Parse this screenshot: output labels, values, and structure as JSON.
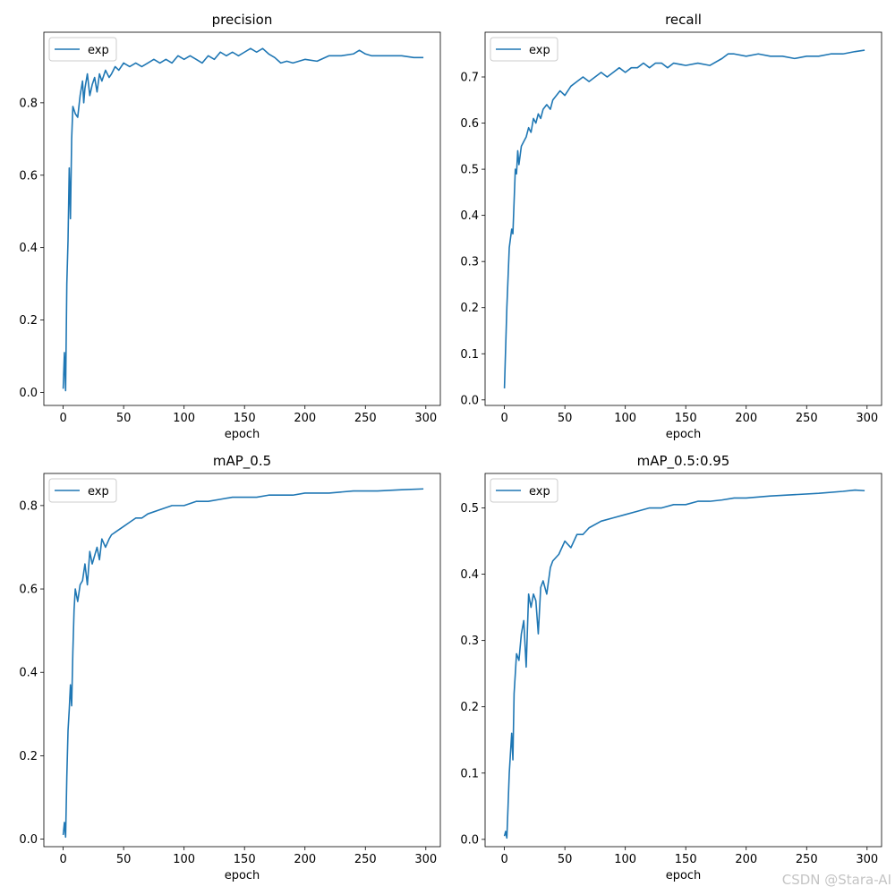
{
  "watermark": "CSDN @Stara-AI",
  "chart_data": [
    {
      "type": "line",
      "title": "precision",
      "xlabel": "epoch",
      "ylabel": "",
      "xlim": [
        -16,
        312
      ],
      "ylim": [
        -0.036,
        0.995
      ],
      "xticks": [
        0,
        50,
        100,
        150,
        200,
        250,
        300
      ],
      "yticks": [
        0.0,
        0.2,
        0.4,
        0.6,
        0.8
      ],
      "ytick_labels": [
        "0.0",
        "0.2",
        "0.4",
        "0.6",
        "0.8"
      ],
      "legend": "top-left",
      "series": [
        {
          "name": "exp",
          "color": "#1f77b4",
          "x": [
            0,
            1,
            2,
            3,
            4,
            5,
            6,
            7,
            8,
            9,
            10,
            12,
            14,
            16,
            17,
            18,
            20,
            22,
            24,
            26,
            28,
            30,
            32,
            35,
            38,
            40,
            43,
            46,
            50,
            55,
            60,
            65,
            70,
            75,
            80,
            85,
            90,
            95,
            100,
            105,
            110,
            115,
            120,
            125,
            130,
            135,
            140,
            145,
            150,
            155,
            160,
            165,
            170,
            175,
            180,
            185,
            190,
            195,
            200,
            210,
            220,
            230,
            240,
            245,
            250,
            255,
            260,
            270,
            280,
            290,
            298
          ],
          "y": [
            0.01,
            0.11,
            0.005,
            0.3,
            0.42,
            0.62,
            0.48,
            0.7,
            0.79,
            0.78,
            0.77,
            0.76,
            0.82,
            0.86,
            0.8,
            0.84,
            0.88,
            0.82,
            0.85,
            0.87,
            0.83,
            0.88,
            0.86,
            0.89,
            0.87,
            0.88,
            0.9,
            0.89,
            0.91,
            0.9,
            0.91,
            0.9,
            0.91,
            0.92,
            0.91,
            0.92,
            0.91,
            0.93,
            0.92,
            0.93,
            0.92,
            0.91,
            0.93,
            0.92,
            0.94,
            0.93,
            0.94,
            0.93,
            0.94,
            0.95,
            0.94,
            0.95,
            0.935,
            0.925,
            0.91,
            0.915,
            0.91,
            0.915,
            0.92,
            0.915,
            0.93,
            0.93,
            0.935,
            0.945,
            0.935,
            0.93,
            0.93,
            0.93,
            0.93,
            0.925,
            0.925
          ]
        }
      ]
    },
    {
      "type": "line",
      "title": "recall",
      "xlabel": "epoch",
      "ylabel": "",
      "xlim": [
        -16,
        312
      ],
      "ylim": [
        -0.012,
        0.797
      ],
      "xticks": [
        0,
        50,
        100,
        150,
        200,
        250,
        300
      ],
      "yticks": [
        0.0,
        0.1,
        0.2,
        0.3,
        0.4,
        0.5,
        0.6,
        0.7
      ],
      "ytick_labels": [
        "0.0",
        "0.1",
        "0.2",
        "0.3",
        "0.4",
        "0.5",
        "0.6",
        "0.7"
      ],
      "legend": "top-left",
      "series": [
        {
          "name": "exp",
          "color": "#1f77b4",
          "x": [
            0,
            2,
            4,
            6,
            7,
            8,
            9,
            10,
            11,
            12,
            14,
            16,
            18,
            20,
            22,
            24,
            26,
            28,
            30,
            32,
            35,
            38,
            40,
            43,
            46,
            50,
            55,
            60,
            65,
            70,
            75,
            80,
            85,
            90,
            95,
            100,
            105,
            110,
            115,
            120,
            125,
            130,
            135,
            140,
            150,
            160,
            170,
            180,
            185,
            190,
            200,
            210,
            220,
            230,
            240,
            250,
            260,
            270,
            280,
            290,
            298
          ],
          "y": [
            0.025,
            0.2,
            0.33,
            0.37,
            0.36,
            0.43,
            0.5,
            0.49,
            0.54,
            0.51,
            0.55,
            0.56,
            0.57,
            0.59,
            0.58,
            0.61,
            0.6,
            0.62,
            0.61,
            0.63,
            0.64,
            0.63,
            0.65,
            0.66,
            0.67,
            0.66,
            0.68,
            0.69,
            0.7,
            0.69,
            0.7,
            0.71,
            0.7,
            0.71,
            0.72,
            0.71,
            0.72,
            0.72,
            0.73,
            0.72,
            0.73,
            0.73,
            0.72,
            0.73,
            0.725,
            0.73,
            0.725,
            0.74,
            0.75,
            0.75,
            0.745,
            0.75,
            0.745,
            0.745,
            0.74,
            0.745,
            0.745,
            0.75,
            0.75,
            0.755,
            0.758
          ]
        }
      ]
    },
    {
      "type": "line",
      "title": "mAP_0.5",
      "xlabel": "epoch",
      "ylabel": "",
      "xlim": [
        -16,
        312
      ],
      "ylim": [
        -0.018,
        0.877
      ],
      "xticks": [
        0,
        50,
        100,
        150,
        200,
        250,
        300
      ],
      "yticks": [
        0.0,
        0.2,
        0.4,
        0.6,
        0.8
      ],
      "ytick_labels": [
        "0.0",
        "0.2",
        "0.4",
        "0.6",
        "0.8"
      ],
      "legend": "top-left",
      "series": [
        {
          "name": "exp",
          "color": "#1f77b4",
          "x": [
            0,
            1,
            2,
            3,
            4,
            5,
            6,
            7,
            8,
            9,
            10,
            12,
            14,
            16,
            18,
            20,
            22,
            24,
            26,
            28,
            30,
            32,
            35,
            38,
            40,
            45,
            50,
            55,
            60,
            65,
            70,
            80,
            90,
            100,
            110,
            120,
            130,
            140,
            150,
            160,
            170,
            180,
            190,
            200,
            220,
            240,
            260,
            280,
            298
          ],
          "y": [
            0.01,
            0.04,
            0.005,
            0.15,
            0.26,
            0.31,
            0.37,
            0.32,
            0.45,
            0.55,
            0.6,
            0.57,
            0.61,
            0.62,
            0.66,
            0.61,
            0.69,
            0.66,
            0.68,
            0.7,
            0.67,
            0.72,
            0.7,
            0.72,
            0.73,
            0.74,
            0.75,
            0.76,
            0.77,
            0.77,
            0.78,
            0.79,
            0.8,
            0.8,
            0.81,
            0.81,
            0.815,
            0.82,
            0.82,
            0.82,
            0.825,
            0.825,
            0.825,
            0.83,
            0.83,
            0.835,
            0.835,
            0.838,
            0.84
          ]
        }
      ]
    },
    {
      "type": "line",
      "title": "mAP_0.5:0.95",
      "xlabel": "epoch",
      "ylabel": "",
      "xlim": [
        -16,
        312
      ],
      "ylim": [
        -0.011,
        0.552
      ],
      "xticks": [
        0,
        50,
        100,
        150,
        200,
        250,
        300
      ],
      "yticks": [
        0.0,
        0.1,
        0.2,
        0.3,
        0.4,
        0.5
      ],
      "ytick_labels": [
        "0.0",
        "0.1",
        "0.2",
        "0.3",
        "0.4",
        "0.5"
      ],
      "legend": "top-left",
      "series": [
        {
          "name": "exp",
          "color": "#1f77b4",
          "x": [
            0,
            1,
            2,
            3,
            4,
            5,
            6,
            7,
            8,
            9,
            10,
            12,
            14,
            16,
            18,
            20,
            22,
            24,
            26,
            28,
            30,
            32,
            35,
            38,
            40,
            45,
            50,
            55,
            60,
            65,
            70,
            80,
            90,
            100,
            110,
            120,
            130,
            140,
            150,
            160,
            170,
            180,
            190,
            200,
            220,
            240,
            260,
            280,
            290,
            298
          ],
          "y": [
            0.005,
            0.012,
            0.002,
            0.05,
            0.1,
            0.13,
            0.16,
            0.12,
            0.22,
            0.25,
            0.28,
            0.27,
            0.31,
            0.33,
            0.26,
            0.37,
            0.35,
            0.37,
            0.36,
            0.31,
            0.38,
            0.39,
            0.37,
            0.41,
            0.42,
            0.43,
            0.45,
            0.44,
            0.46,
            0.46,
            0.47,
            0.48,
            0.485,
            0.49,
            0.495,
            0.5,
            0.5,
            0.505,
            0.505,
            0.51,
            0.51,
            0.512,
            0.515,
            0.515,
            0.518,
            0.52,
            0.522,
            0.525,
            0.527,
            0.526
          ]
        }
      ]
    }
  ]
}
